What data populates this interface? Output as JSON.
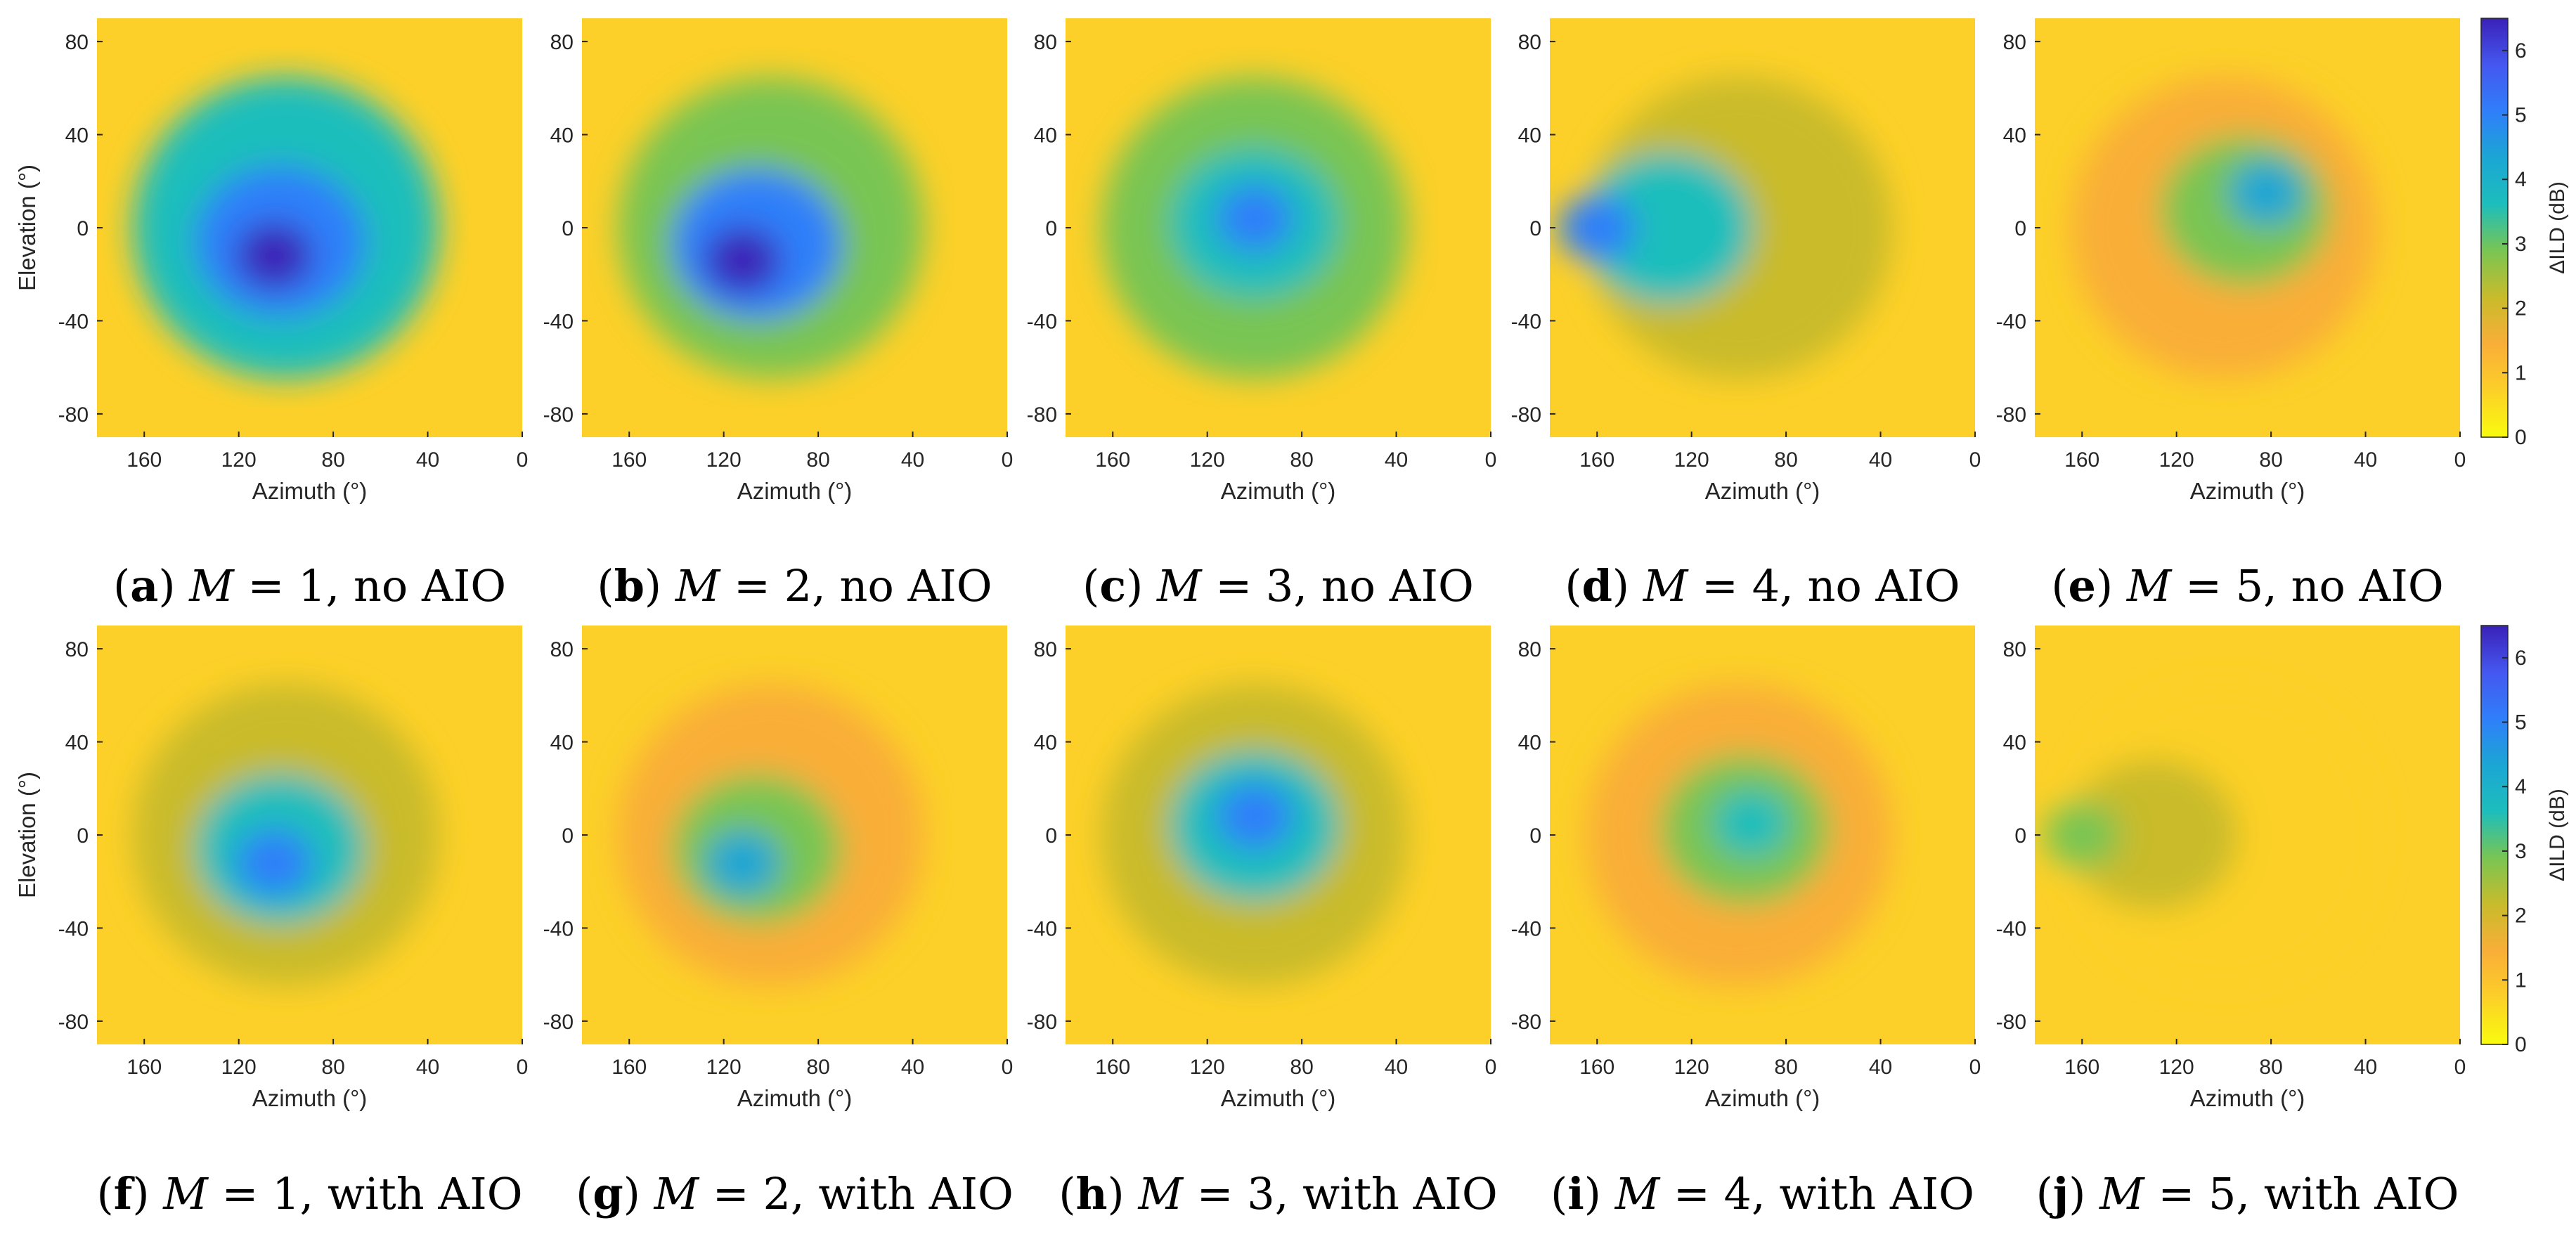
{
  "chart_data": [
    {
      "type": "heatmap",
      "panel": "a",
      "M": "1",
      "variant": "no AIO",
      "mean_delta_ild_db": 3.6,
      "peak_delta_ild_db": 6.2,
      "peak_azimuth": 105,
      "peak_elevation": -12,
      "xlabel": "Azimuth (°)",
      "ylabel": "Elevation (°)",
      "xlim": [
        180,
        0
      ],
      "ylim": [
        -90,
        90
      ],
      "xticks": [
        "160",
        "120",
        "80",
        "40",
        "0"
      ],
      "yticks": [
        "80",
        "40",
        "0",
        "-40",
        "-80"
      ]
    },
    {
      "type": "heatmap",
      "panel": "b",
      "M": "2",
      "variant": "no AIO",
      "mean_delta_ild_db": 3.2,
      "peak_delta_ild_db": 6.2,
      "peak_azimuth": 112,
      "peak_elevation": -14,
      "xlabel": "Azimuth (°)",
      "ylabel": "",
      "xlim": [
        180,
        0
      ],
      "ylim": [
        -90,
        90
      ],
      "xticks": [
        "160",
        "120",
        "80",
        "40",
        "0"
      ],
      "yticks": [
        "80",
        "40",
        "0",
        "-40",
        "-80"
      ]
    },
    {
      "type": "heatmap",
      "panel": "c",
      "M": "3",
      "variant": "no AIO",
      "mean_delta_ild_db": 2.6,
      "peak_delta_ild_db": 5.2,
      "peak_azimuth": 100,
      "peak_elevation": 4,
      "xlabel": "Azimuth (°)",
      "ylabel": "",
      "xlim": [
        180,
        0
      ],
      "ylim": [
        -90,
        90
      ],
      "xticks": [
        "160",
        "120",
        "80",
        "40",
        "0"
      ],
      "yticks": [
        "80",
        "40",
        "0",
        "-40",
        "-80"
      ]
    },
    {
      "type": "heatmap",
      "panel": "d",
      "M": "4",
      "variant": "no AIO",
      "mean_delta_ild_db": 2.3,
      "peak_delta_ild_db": 4.8,
      "peak_azimuth": 160,
      "peak_elevation": 0,
      "xlabel": "Azimuth (°)",
      "ylabel": "",
      "xlim": [
        180,
        0
      ],
      "ylim": [
        -90,
        90
      ],
      "xticks": [
        "160",
        "120",
        "80",
        "40",
        "0"
      ],
      "yticks": [
        "80",
        "40",
        "0",
        "-40",
        "-80"
      ]
    },
    {
      "type": "heatmap",
      "panel": "e",
      "M": "5",
      "variant": "no AIO",
      "mean_delta_ild_db": 1.3,
      "peak_delta_ild_db": 4.0,
      "peak_azimuth": 82,
      "peak_elevation": 15,
      "xlabel": "Azimuth (°)",
      "ylabel": "",
      "xlim": [
        180,
        0
      ],
      "ylim": [
        -90,
        90
      ],
      "xticks": [
        "160",
        "120",
        "80",
        "40",
        "0"
      ],
      "yticks": [
        "80",
        "40",
        "0",
        "-40",
        "-80"
      ]
    },
    {
      "type": "heatmap",
      "panel": "f",
      "M": "1",
      "variant": "with AIO",
      "mean_delta_ild_db": 2.5,
      "peak_delta_ild_db": 5.0,
      "peak_azimuth": 105,
      "peak_elevation": -12,
      "xlabel": "Azimuth (°)",
      "ylabel": "Elevation (°)",
      "xlim": [
        180,
        0
      ],
      "ylim": [
        -90,
        90
      ],
      "xticks": [
        "160",
        "120",
        "80",
        "40",
        "0"
      ],
      "yticks": [
        "80",
        "40",
        "0",
        "-40",
        "-80"
      ]
    },
    {
      "type": "heatmap",
      "panel": "g",
      "M": "2",
      "variant": "with AIO",
      "mean_delta_ild_db": 1.8,
      "peak_delta_ild_db": 4.0,
      "peak_azimuth": 112,
      "peak_elevation": -12,
      "xlabel": "Azimuth (°)",
      "ylabel": "",
      "xlim": [
        180,
        0
      ],
      "ylim": [
        -90,
        90
      ],
      "xticks": [
        "160",
        "120",
        "80",
        "40",
        "0"
      ],
      "yticks": [
        "80",
        "40",
        "0",
        "-40",
        "-80"
      ]
    },
    {
      "type": "heatmap",
      "panel": "h",
      "M": "3",
      "variant": "with AIO",
      "mean_delta_ild_db": 2.0,
      "peak_delta_ild_db": 5.0,
      "peak_azimuth": 100,
      "peak_elevation": 8,
      "xlabel": "Azimuth (°)",
      "ylabel": "",
      "xlim": [
        180,
        0
      ],
      "ylim": [
        -90,
        90
      ],
      "xticks": [
        "160",
        "120",
        "80",
        "40",
        "0"
      ],
      "yticks": [
        "80",
        "40",
        "0",
        "-40",
        "-80"
      ]
    },
    {
      "type": "heatmap",
      "panel": "i",
      "M": "4",
      "variant": "with AIO",
      "mean_delta_ild_db": 1.5,
      "peak_delta_ild_db": 3.8,
      "peak_azimuth": 95,
      "peak_elevation": 5,
      "xlabel": "Azimuth (°)",
      "ylabel": "",
      "xlim": [
        180,
        0
      ],
      "ylim": [
        -90,
        90
      ],
      "xticks": [
        "160",
        "120",
        "80",
        "40",
        "0"
      ],
      "yticks": [
        "80",
        "40",
        "0",
        "-40",
        "-80"
      ]
    },
    {
      "type": "heatmap",
      "panel": "j",
      "M": "5",
      "variant": "with AIO",
      "mean_delta_ild_db": 1.0,
      "peak_delta_ild_db": 3.2,
      "peak_azimuth": 160,
      "peak_elevation": 0,
      "xlabel": "Azimuth (°)",
      "ylabel": "",
      "xlim": [
        180,
        0
      ],
      "ylim": [
        -90,
        90
      ],
      "xticks": [
        "160",
        "120",
        "80",
        "40",
        "0"
      ],
      "yticks": [
        "80",
        "40",
        "0",
        "-40",
        "-80"
      ]
    }
  ],
  "colorbar": {
    "label": "ΔILD (dB)",
    "range": [
      0,
      6.5
    ],
    "ticks": [
      "0",
      "1",
      "2",
      "3",
      "4",
      "5",
      "6"
    ],
    "colormap": [
      "#f9fb0e",
      "#fcd028",
      "#f9ae38",
      "#c9bb2b",
      "#79c552",
      "#1dbebc",
      "#1ba6d4",
      "#2f7ffa",
      "#4557f0",
      "#3a21b8"
    ]
  },
  "captions": [
    {
      "letter": "a",
      "var": "M",
      "eq": " = 1,",
      "rest": " no AIO"
    },
    {
      "letter": "b",
      "var": "M",
      "eq": " = 2,",
      "rest": " no AIO"
    },
    {
      "letter": "c",
      "var": "M",
      "eq": " = 3,",
      "rest": " no AIO"
    },
    {
      "letter": "d",
      "var": "M",
      "eq": " = 4,",
      "rest": " no AIO"
    },
    {
      "letter": "e",
      "var": "M",
      "eq": " = 5,",
      "rest": " no AIO"
    },
    {
      "letter": "f",
      "var": "M",
      "eq": " = 1,",
      "rest": " with AIO"
    },
    {
      "letter": "g",
      "var": "M",
      "eq": " = 2,",
      "rest": " with AIO"
    },
    {
      "letter": "h",
      "var": "M",
      "eq": " = 3,",
      "rest": " with AIO"
    },
    {
      "letter": "i",
      "var": "M",
      "eq": " = 4,",
      "rest": " with AIO"
    },
    {
      "letter": "j",
      "var": "M",
      "eq": " = 5,",
      "rest": " with AIO"
    }
  ]
}
